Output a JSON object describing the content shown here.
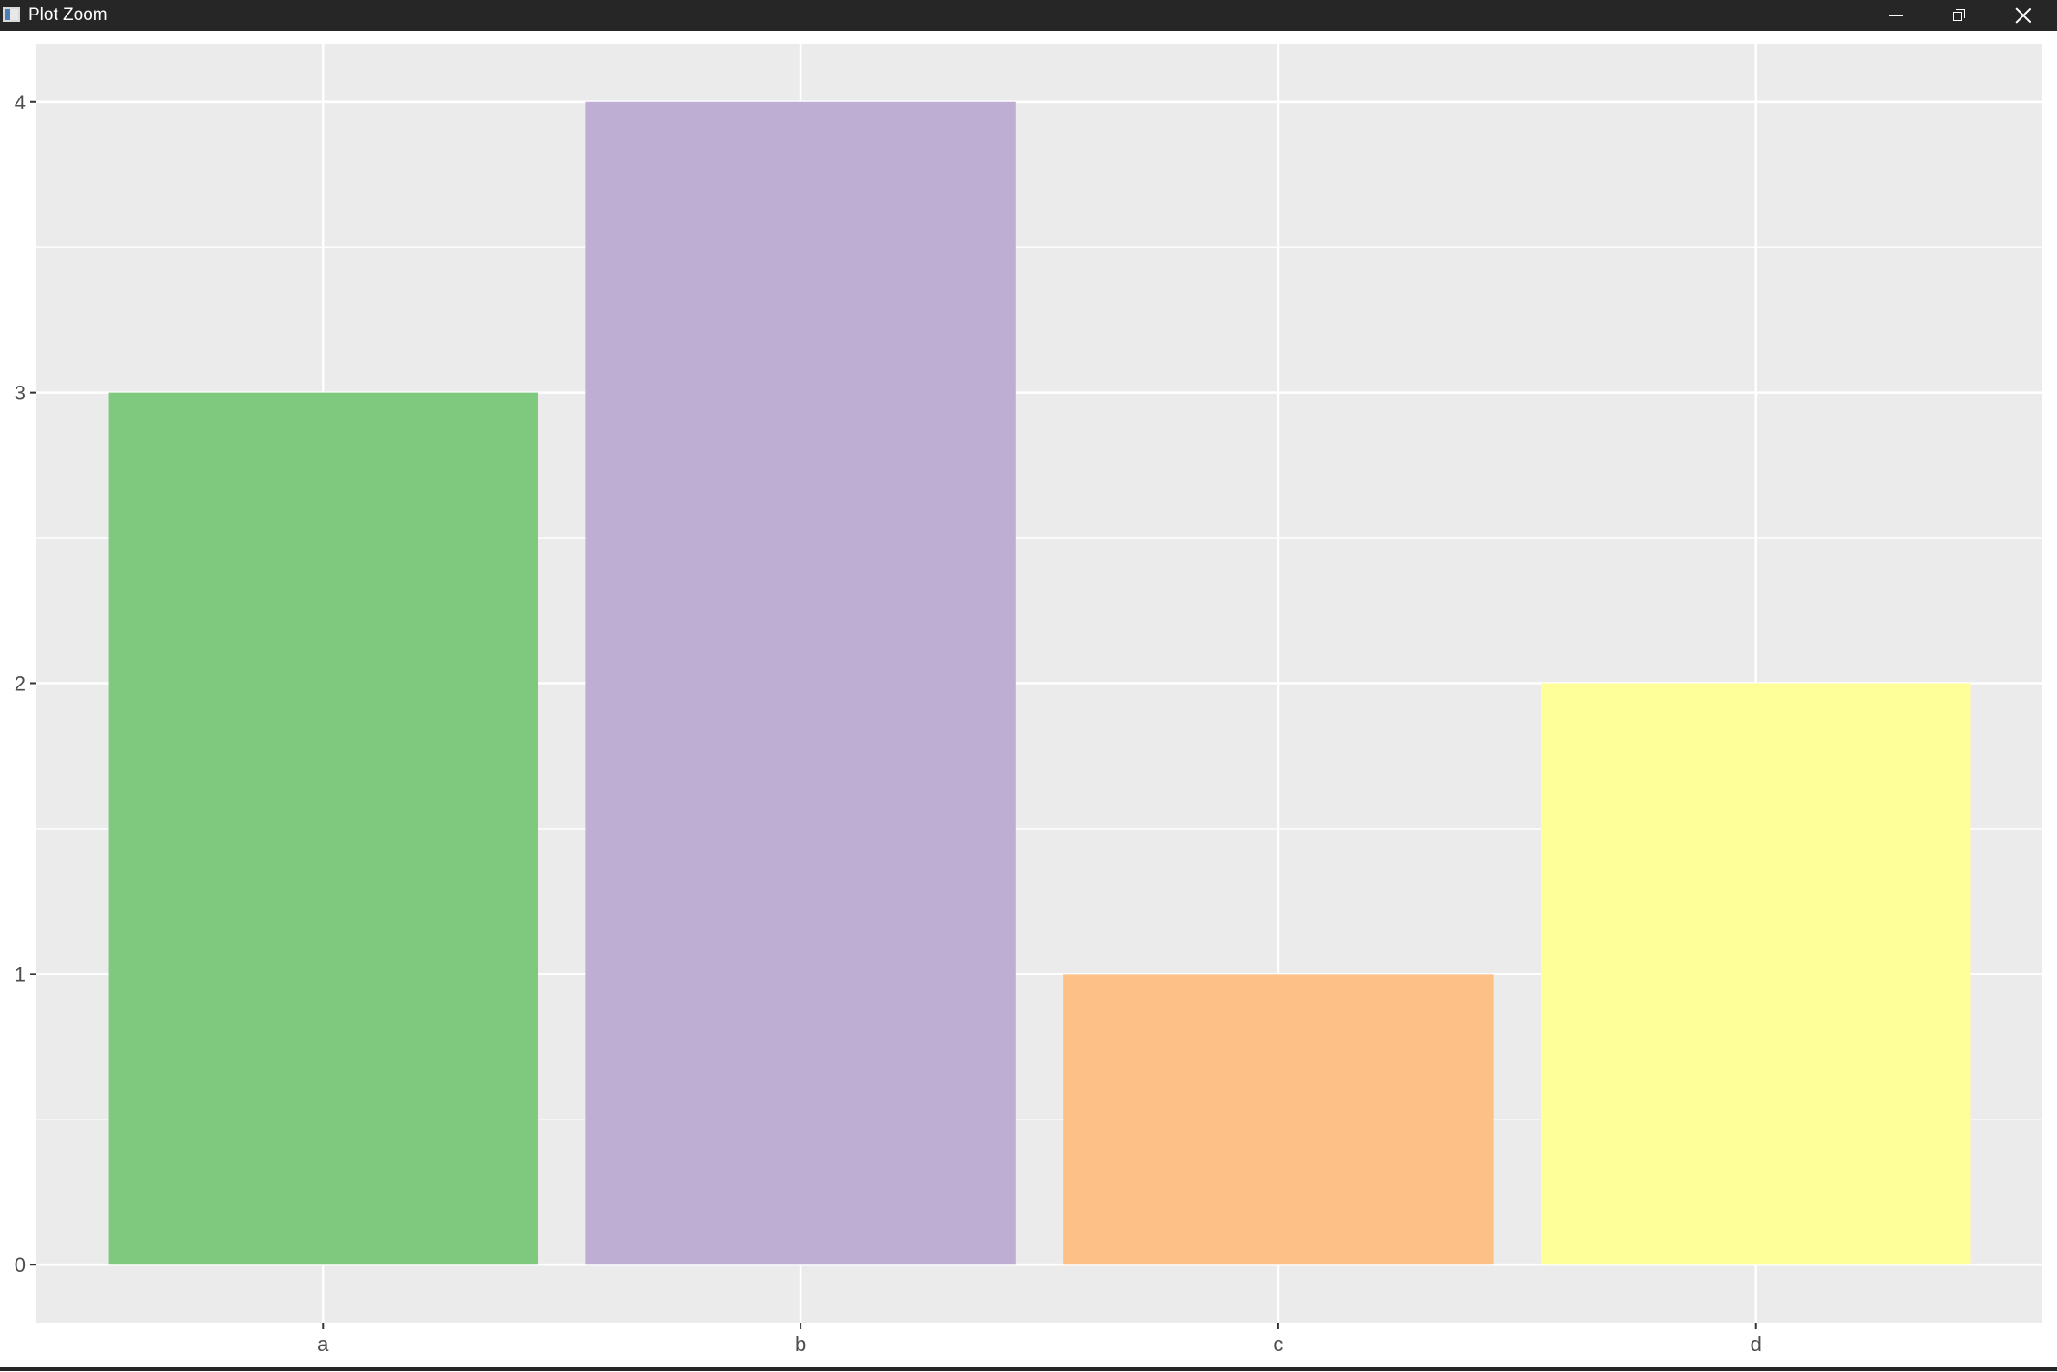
{
  "window": {
    "title": "Plot Zoom",
    "icons": {
      "app": "plot-window-icon",
      "minimize": "minimize-icon",
      "restore": "restore-icon",
      "close": "close-icon"
    }
  },
  "chart_data": {
    "type": "bar",
    "categories": [
      "a",
      "b",
      "c",
      "d"
    ],
    "values": [
      3,
      4,
      1,
      2
    ],
    "colors": [
      "#7FC97F",
      "#BEAED4",
      "#FDC086",
      "#FFFF99"
    ],
    "title": "",
    "xlabel": "",
    "ylabel": "",
    "ylim": [
      -0.2,
      4.2
    ],
    "yticks": [
      0,
      1,
      2,
      3,
      4
    ],
    "yminor": [
      0.5,
      1.5,
      2.5,
      3.5
    ],
    "grid": true,
    "legend": "none",
    "panel_background": "#EBEBEB",
    "grid_color": "#FFFFFF",
    "axis_text_color": "#4D4D4D",
    "tick_color": "#333333"
  }
}
